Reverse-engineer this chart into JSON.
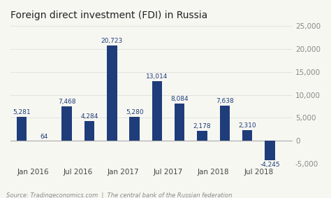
{
  "title": "Foreign direct investment (FDI) in Russia",
  "source": "Source: Tradingeconomics.com  |  The central bank of the Russian federation",
  "x_labels": [
    "Jan 2016",
    "Jul 2016",
    "Jan 2017",
    "Jul 2017",
    "Jan 2018",
    "Jul 2018"
  ],
  "values": [
    5281,
    64,
    7468,
    4284,
    20723,
    5280,
    13014,
    8084,
    2178,
    7638,
    2310,
    -4245
  ],
  "value_labels": [
    "5,281",
    "64",
    "7,468",
    "4,284",
    "20,723",
    "5,280",
    "13,014",
    "8,084",
    "2,178",
    "7,638",
    "2,310",
    "-4,245"
  ],
  "bar_color": "#1f3d7a",
  "background_color": "#f7f7f2",
  "grid_color": "#dddddd",
  "ylim": [
    -5000,
    25000
  ],
  "yticks": [
    -5000,
    0,
    5000,
    10000,
    15000,
    20000,
    25000
  ],
  "title_fontsize": 10,
  "label_fontsize": 6.5,
  "tick_fontsize": 7.5,
  "source_fontsize": 6
}
